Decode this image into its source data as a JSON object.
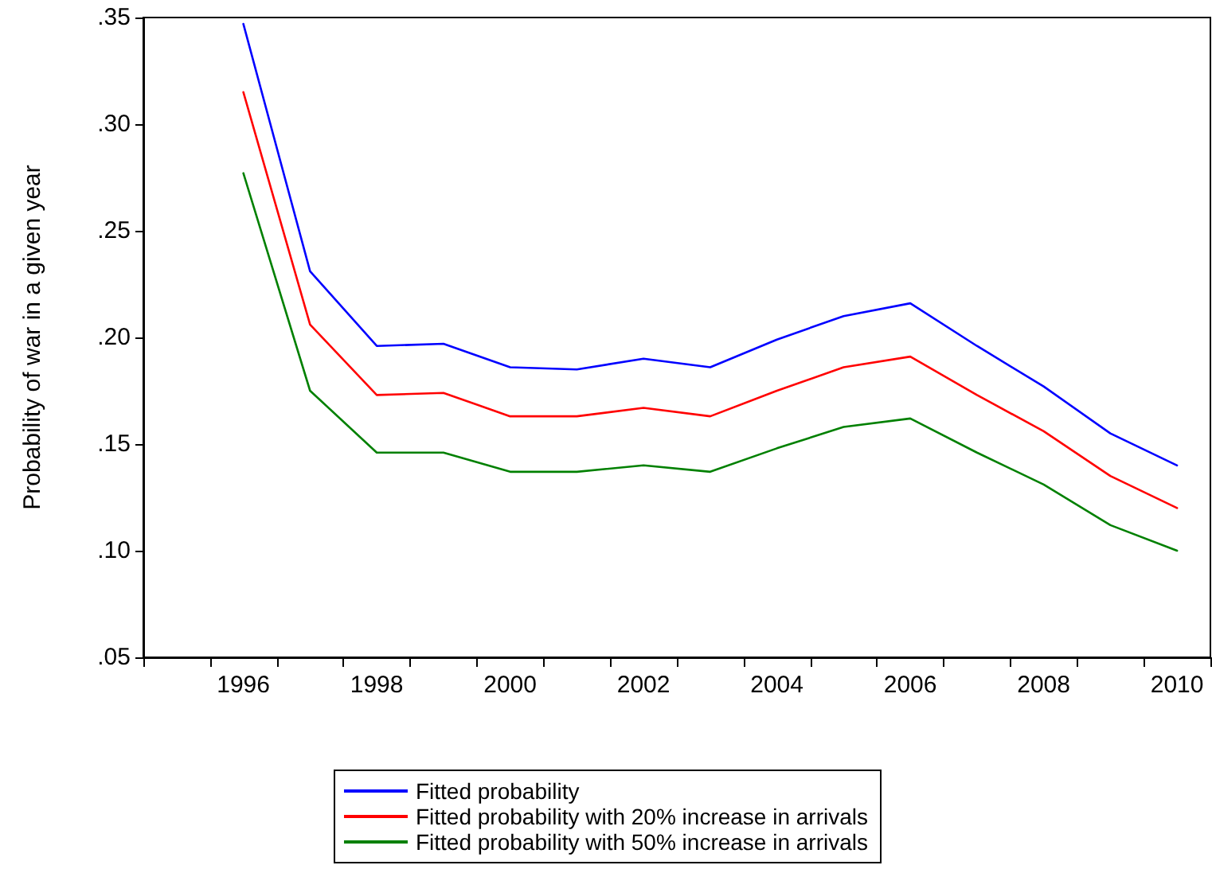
{
  "chart_data": {
    "type": "line",
    "ylabel": "Probability of war in a given year",
    "categories": [
      null,
      "1996",
      null,
      "1998",
      null,
      "2000",
      null,
      "2002",
      null,
      "2004",
      null,
      "2006",
      null,
      "2008",
      null,
      "2010"
    ],
    "series": [
      {
        "name": "Fitted probability",
        "color": "#0000ff",
        "values": [
          null,
          0.347,
          0.231,
          0.196,
          0.197,
          0.186,
          0.185,
          0.19,
          0.186,
          0.199,
          0.21,
          0.216,
          0.196,
          0.177,
          0.155,
          0.14
        ]
      },
      {
        "name": "Fitted probability with 20% increase in arrivals",
        "color": "#ff0000",
        "values": [
          null,
          0.315,
          0.206,
          0.173,
          0.174,
          0.163,
          0.163,
          0.167,
          0.163,
          0.175,
          0.186,
          0.191,
          0.173,
          0.156,
          0.135,
          0.12
        ]
      },
      {
        "name": "Fitted probability with 50% increase in arrivals",
        "color": "#008000",
        "values": [
          null,
          0.277,
          0.175,
          0.146,
          0.146,
          0.137,
          0.137,
          0.14,
          0.137,
          0.148,
          0.158,
          0.162,
          0.146,
          0.131,
          0.112,
          0.1
        ]
      }
    ],
    "ylim": [
      0.05,
      0.35
    ],
    "yticks": [
      {
        "value": 0.05,
        "label": ".05"
      },
      {
        "value": 0.1,
        "label": ".10"
      },
      {
        "value": 0.15,
        "label": ".15"
      },
      {
        "value": 0.2,
        "label": ".20"
      },
      {
        "value": 0.25,
        "label": ".25"
      },
      {
        "value": 0.3,
        "label": ".30"
      },
      {
        "value": 0.35,
        "label": ".35"
      }
    ],
    "grid": false,
    "legend": "bottom",
    "marker": "none",
    "line_style": "solid"
  }
}
